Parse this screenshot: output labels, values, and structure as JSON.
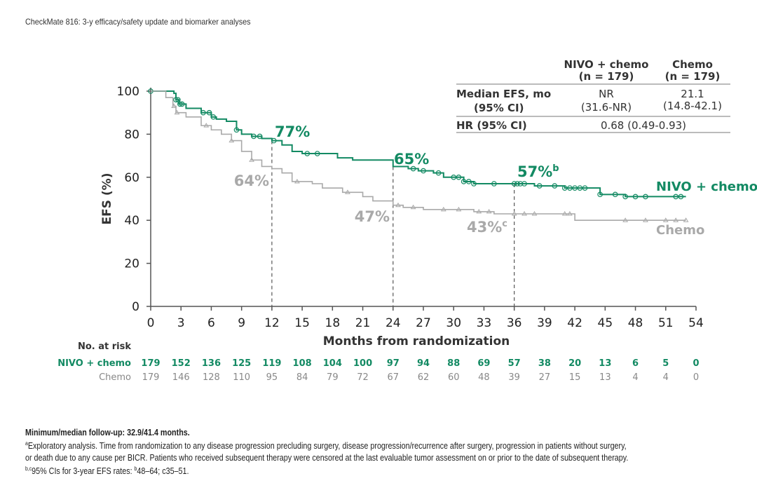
{
  "header": {
    "title": "CheckMate 816: 3-y efficacy/safety update and biomarker analyses"
  },
  "colors": {
    "nivo": "#138a63",
    "chemo": "#a9a9a9",
    "axis": "#555555"
  },
  "chart_data": {
    "type": "line",
    "subtype": "kaplan-meier",
    "xlabel": "Months from randomization",
    "ylabel": "EFS (%)",
    "xlim": [
      0,
      54
    ],
    "ylim": [
      0,
      100
    ],
    "xticks": [
      0,
      3,
      6,
      9,
      12,
      15,
      18,
      21,
      24,
      27,
      30,
      33,
      36,
      39,
      42,
      45,
      48,
      51,
      54
    ],
    "yticks": [
      0,
      20,
      40,
      60,
      80,
      100
    ],
    "grid": false,
    "series": [
      {
        "name": "NIVO + chemo",
        "marker": "circle",
        "points": [
          [
            0,
            100
          ],
          [
            2.3,
            99
          ],
          [
            2.5,
            96
          ],
          [
            2.8,
            94
          ],
          [
            3.5,
            92
          ],
          [
            5,
            90
          ],
          [
            6,
            88
          ],
          [
            6.5,
            87
          ],
          [
            7.5,
            86
          ],
          [
            8.5,
            82
          ],
          [
            9,
            80
          ],
          [
            10,
            79
          ],
          [
            11,
            78
          ],
          [
            12,
            77
          ],
          [
            13,
            75
          ],
          [
            14,
            72
          ],
          [
            15,
            71
          ],
          [
            18,
            71
          ],
          [
            18.5,
            69
          ],
          [
            20,
            68
          ],
          [
            24,
            65
          ],
          [
            25.5,
            64
          ],
          [
            26.5,
            63
          ],
          [
            28,
            62
          ],
          [
            29,
            60
          ],
          [
            31,
            58
          ],
          [
            32,
            57
          ],
          [
            36,
            57
          ],
          [
            38,
            56
          ],
          [
            40,
            56
          ],
          [
            41,
            55
          ],
          [
            42.5,
            55
          ],
          [
            44.5,
            52
          ],
          [
            47,
            51
          ],
          [
            53,
            51
          ]
        ],
        "censored": [
          0,
          2.5,
          2.7,
          2.9,
          3.1,
          5.2,
          5.8,
          6.2,
          8.5,
          10.2,
          10.8,
          12.2,
          15.5,
          16.5,
          26,
          27,
          28.5,
          30,
          30.5,
          31,
          31.5,
          32,
          34,
          36,
          36.3,
          36.6,
          37,
          38.5,
          40,
          41,
          41.5,
          42,
          42.5,
          43,
          44.5,
          46,
          47,
          48,
          49,
          52,
          52.5
        ]
      },
      {
        "name": "Chemo",
        "marker": "triangle",
        "points": [
          [
            0,
            100
          ],
          [
            1.5,
            97
          ],
          [
            2.2,
            93
          ],
          [
            2.5,
            90
          ],
          [
            3.5,
            88
          ],
          [
            5,
            84
          ],
          [
            6,
            82
          ],
          [
            7,
            80
          ],
          [
            8,
            77
          ],
          [
            9,
            72
          ],
          [
            10,
            68
          ],
          [
            11,
            65
          ],
          [
            12,
            64
          ],
          [
            13,
            62
          ],
          [
            14,
            58
          ],
          [
            16,
            57
          ],
          [
            17,
            55
          ],
          [
            19,
            53
          ],
          [
            21,
            51
          ],
          [
            22,
            49
          ],
          [
            24,
            47
          ],
          [
            25,
            46
          ],
          [
            27,
            45
          ],
          [
            32,
            44
          ],
          [
            34,
            43
          ],
          [
            41,
            43
          ],
          [
            42,
            40
          ],
          [
            53,
            40
          ]
        ],
        "censored": [
          2.3,
          2.6,
          5.5,
          8,
          10,
          14.5,
          19.5,
          24.5,
          26,
          29,
          30.5,
          32.5,
          33.5,
          36,
          37,
          38,
          41,
          41.5,
          47,
          49,
          51,
          52,
          53
        ]
      }
    ],
    "annotations": [
      {
        "x": 12,
        "series": "NIVO + chemo",
        "label": "77%",
        "sup": ""
      },
      {
        "x": 12,
        "series": "Chemo",
        "label": "64%",
        "sup": ""
      },
      {
        "x": 24,
        "series": "NIVO + chemo",
        "label": "65%",
        "sup": ""
      },
      {
        "x": 24,
        "series": "Chemo",
        "label": "47%",
        "sup": ""
      },
      {
        "x": 36,
        "series": "NIVO + chemo",
        "label": "57%",
        "sup": "b"
      },
      {
        "x": 36,
        "series": "Chemo",
        "label": "43%",
        "sup": "c"
      }
    ],
    "summary_table": {
      "headers": [
        "",
        "NIVO + chemo",
        "Chemo"
      ],
      "subheaders": [
        "",
        "(n = 179)",
        "(n = 179)"
      ],
      "rows": [
        {
          "label": "Median EFS, mo",
          "label2": "(95% CI)",
          "nivo": "NR",
          "nivo2": "(31.6-NR)",
          "chemo": "21.1",
          "chemo2": "(14.8-42.1)"
        },
        {
          "label": "HR (95% CI)",
          "value": "0.68 (0.49-0.93)"
        }
      ]
    },
    "risk_table": {
      "title": "No. at risk",
      "rows": [
        {
          "name": "NIVO + chemo",
          "values": [
            179,
            152,
            136,
            125,
            119,
            108,
            104,
            100,
            97,
            94,
            88,
            69,
            57,
            38,
            20,
            13,
            6,
            5,
            0
          ]
        },
        {
          "name": "Chemo",
          "values": [
            179,
            146,
            128,
            110,
            95,
            84,
            79,
            72,
            67,
            62,
            60,
            48,
            39,
            27,
            15,
            13,
            4,
            4,
            0
          ]
        }
      ]
    }
  },
  "footnotes": {
    "followup": "Minimum/median follow-up: 32.9/41.4 months.",
    "a_mark": "a",
    "a_text": "Exploratory analysis. Time from randomization to any disease progression precluding surgery, disease progression/recurrence after surgery, progression in patients without surgery,",
    "a_text2": "or death due to any cause per BICR. Patients who received subsequent therapy were censored at the last evaluable tumor assessment on or prior to the date of subsequent therapy.",
    "bc_mark": "b,c",
    "bc_text": "95% CIs for 3-year EFS rates: ",
    "b_mark": "b",
    "bc_text2": "48–64; c35–51."
  }
}
